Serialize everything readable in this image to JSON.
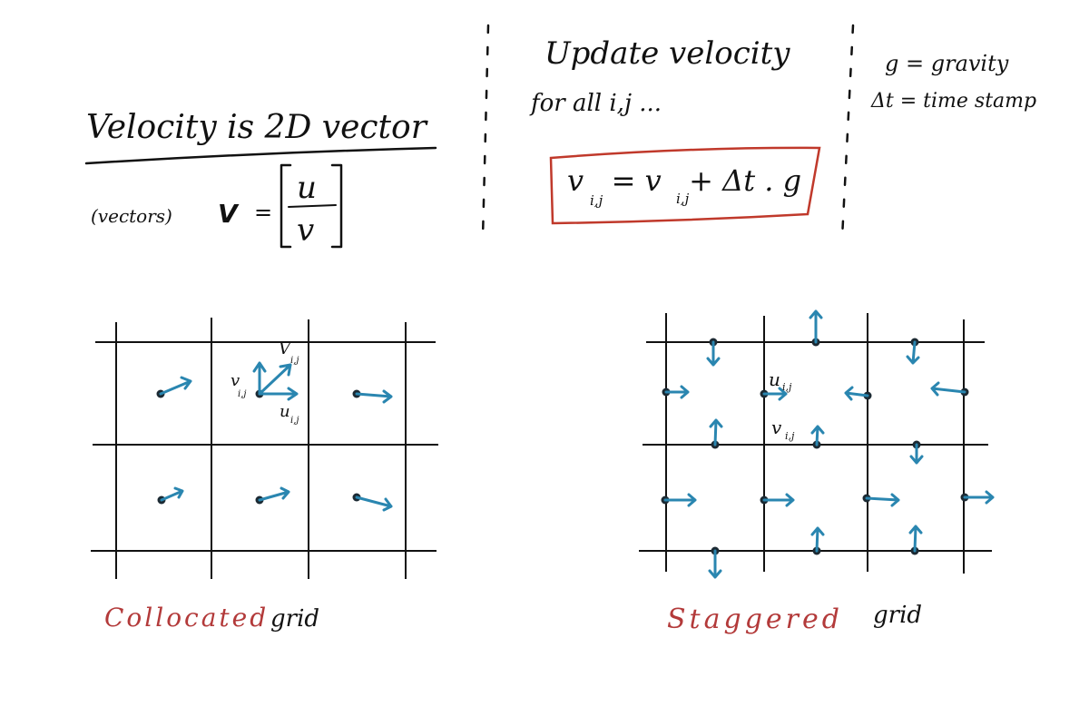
{
  "notes": {
    "velocity_heading": "Velocity is 2D vector",
    "vector_label": "(vectors)",
    "vector_symbol": "V",
    "equals": "=",
    "matrix_top": "u",
    "matrix_bottom": "v",
    "update_heading": "Update velocity",
    "for_all": "for all i,j ...",
    "equation": "v   = v   + Δt . g",
    "eq_sub_left": "i,j",
    "eq_sub_right": "i,j",
    "gravity_def": "g = gravity",
    "timestep_def": "Δt = time stamp"
  },
  "colocated": {
    "caption_colored": "Collocated",
    "caption_plain": "grid",
    "label_v": "v",
    "label_v_sub": "i,j",
    "label_V": "V",
    "label_V_sub": "i,j",
    "label_u": "u",
    "label_u_sub": "i,j"
  },
  "staggered": {
    "caption_colored": "Staggered",
    "caption_plain": "grid",
    "label_u": "u",
    "label_u_sub": "i,j",
    "label_v": "v",
    "label_v_sub": "i,j"
  },
  "colors": {
    "ink": "#111111",
    "vector": "#2a86b0",
    "highlight": "#c0392b",
    "caption": "#b33a3a"
  }
}
